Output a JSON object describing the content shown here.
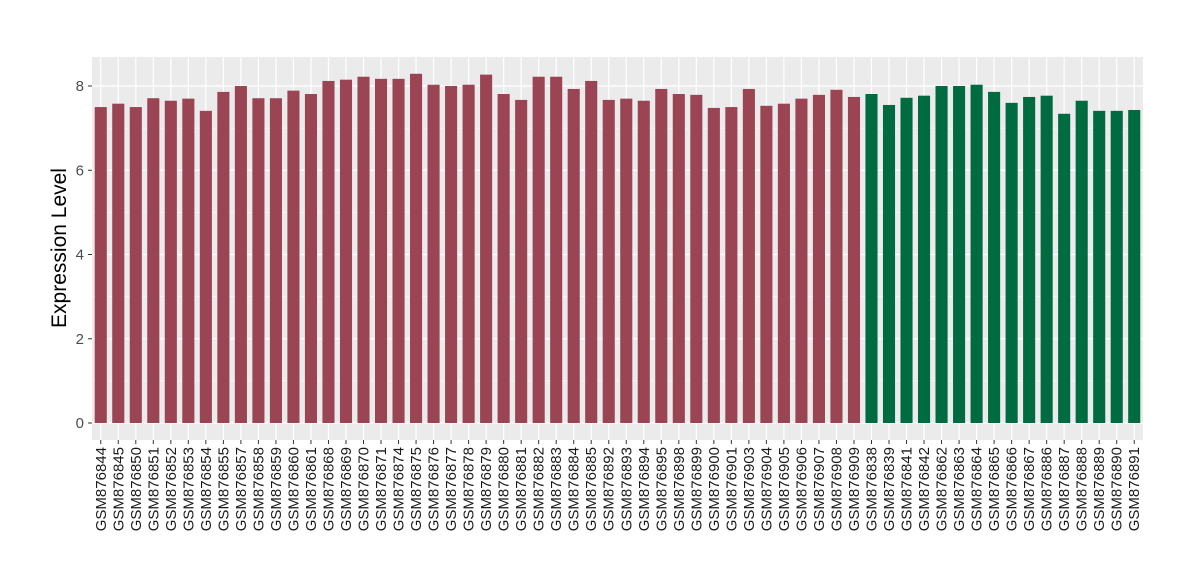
{
  "chart_data": {
    "type": "bar",
    "title": "",
    "xlabel": "",
    "ylabel": "Expression Level",
    "ylim": [
      0,
      8.65
    ],
    "yticks": [
      0,
      2,
      4,
      6,
      8
    ],
    "grid": true,
    "colors": {
      "group1": "#9B4453",
      "group2": "#006A40",
      "panel": "#EBEBEB",
      "grid": "#FFFFFF"
    },
    "categories": [
      "GSM876844",
      "GSM876845",
      "GSM876850",
      "GSM876851",
      "GSM876852",
      "GSM876853",
      "GSM876854",
      "GSM876855",
      "GSM876857",
      "GSM876858",
      "GSM876859",
      "GSM876860",
      "GSM876861",
      "GSM876868",
      "GSM876869",
      "GSM876870",
      "GSM876871",
      "GSM876874",
      "GSM876875",
      "GSM876876",
      "GSM876877",
      "GSM876878",
      "GSM876879",
      "GSM876880",
      "GSM876881",
      "GSM876882",
      "GSM876883",
      "GSM876884",
      "GSM876885",
      "GSM876892",
      "GSM876893",
      "GSM876894",
      "GSM876895",
      "GSM876898",
      "GSM876899",
      "GSM876900",
      "GSM876901",
      "GSM876903",
      "GSM876904",
      "GSM876905",
      "GSM876906",
      "GSM876907",
      "GSM876908",
      "GSM876909",
      "GSM876838",
      "GSM876839",
      "GSM876841",
      "GSM876842",
      "GSM876862",
      "GSM876863",
      "GSM876864",
      "GSM876865",
      "GSM876866",
      "GSM876867",
      "GSM876886",
      "GSM876887",
      "GSM876888",
      "GSM876889",
      "GSM876890",
      "GSM876891"
    ],
    "values": [
      7.5,
      7.58,
      7.5,
      7.71,
      7.65,
      7.7,
      7.41,
      7.86,
      8.0,
      7.71,
      7.71,
      7.89,
      7.81,
      8.12,
      8.15,
      8.22,
      8.17,
      8.17,
      8.29,
      8.03,
      8.0,
      8.03,
      8.27,
      7.81,
      7.67,
      8.22,
      8.22,
      7.93,
      8.12,
      7.67,
      7.7,
      7.65,
      7.93,
      7.81,
      7.79,
      7.48,
      7.5,
      7.93,
      7.53,
      7.58,
      7.7,
      7.79,
      7.91,
      7.74,
      7.81,
      7.55,
      7.72,
      7.77,
      8.0,
      8.0,
      8.03,
      7.86,
      7.6,
      7.74,
      7.77,
      7.34,
      7.65,
      7.41,
      7.41,
      7.43
    ],
    "groups": [
      1,
      1,
      1,
      1,
      1,
      1,
      1,
      1,
      1,
      1,
      1,
      1,
      1,
      1,
      1,
      1,
      1,
      1,
      1,
      1,
      1,
      1,
      1,
      1,
      1,
      1,
      1,
      1,
      1,
      1,
      1,
      1,
      1,
      1,
      1,
      1,
      1,
      1,
      1,
      1,
      1,
      1,
      1,
      1,
      2,
      2,
      2,
      2,
      2,
      2,
      2,
      2,
      2,
      2,
      2,
      2,
      2,
      2,
      2,
      2
    ]
  }
}
